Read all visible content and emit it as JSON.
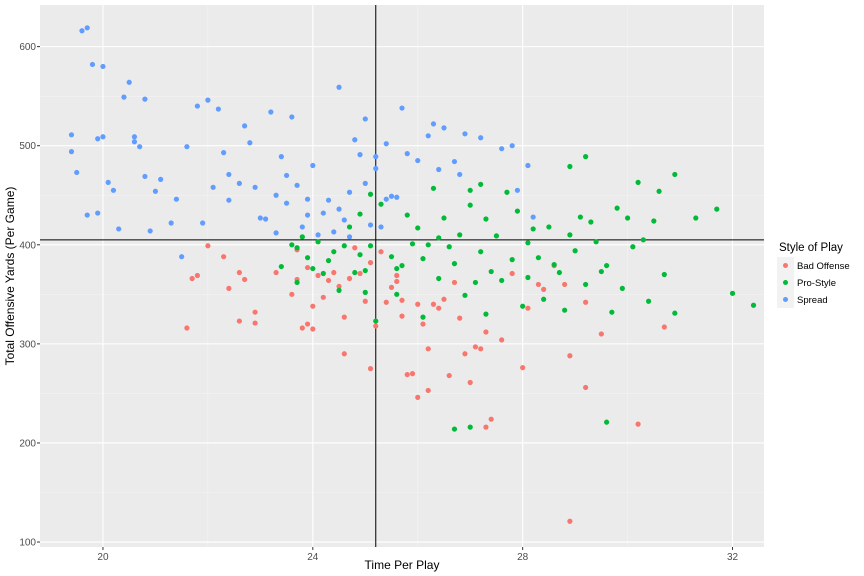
{
  "chart_data": {
    "type": "scatter",
    "xlabel": "Time Per Play",
    "ylabel": "Total Offensive Yards (Per Game)",
    "xlim": [
      18.8,
      32.6
    ],
    "ylim": [
      95,
      642
    ],
    "x_ticks": [
      20,
      24,
      28,
      32
    ],
    "y_ticks": [
      100,
      200,
      300,
      400,
      500,
      600
    ],
    "x_tick_labels": [
      "20",
      "24",
      "28",
      "32"
    ],
    "y_tick_labels": [
      "100",
      "200",
      "300",
      "400",
      "500",
      "600"
    ],
    "grid": true,
    "reference_lines": {
      "vertical_x": 25.2,
      "horizontal_y": 405
    },
    "legend": {
      "title": "Style of Play",
      "position": "right"
    },
    "series": [
      {
        "name": "Bad Offense",
        "color": "#F8766D",
        "points": [
          [
            21.6,
            316
          ],
          [
            21.7,
            366
          ],
          [
            21.8,
            369
          ],
          [
            22.0,
            399
          ],
          [
            22.3,
            388
          ],
          [
            22.4,
            356
          ],
          [
            22.6,
            372
          ],
          [
            22.6,
            323
          ],
          [
            22.7,
            365
          ],
          [
            22.9,
            332
          ],
          [
            22.9,
            321
          ],
          [
            23.3,
            372
          ],
          [
            23.6,
            350
          ],
          [
            23.7,
            365
          ],
          [
            23.7,
            395
          ],
          [
            23.8,
            316
          ],
          [
            23.9,
            320
          ],
          [
            23.9,
            377
          ],
          [
            24.0,
            338
          ],
          [
            24.0,
            315
          ],
          [
            24.1,
            369
          ],
          [
            24.2,
            347
          ],
          [
            24.3,
            364
          ],
          [
            24.4,
            372
          ],
          [
            24.5,
            358
          ],
          [
            24.6,
            327
          ],
          [
            24.6,
            290
          ],
          [
            24.7,
            366
          ],
          [
            24.8,
            397
          ],
          [
            24.9,
            371
          ],
          [
            25.0,
            343
          ],
          [
            25.1,
            382
          ],
          [
            25.1,
            275
          ],
          [
            25.2,
            318
          ],
          [
            25.3,
            393
          ],
          [
            25.4,
            342
          ],
          [
            25.5,
            357
          ],
          [
            25.6,
            363
          ],
          [
            25.6,
            369
          ],
          [
            25.7,
            344
          ],
          [
            25.7,
            328
          ],
          [
            25.8,
            269
          ],
          [
            25.9,
            270
          ],
          [
            26.0,
            246
          ],
          [
            26.0,
            340
          ],
          [
            26.1,
            320
          ],
          [
            26.2,
            295
          ],
          [
            26.3,
            340
          ],
          [
            26.4,
            336
          ],
          [
            26.5,
            345
          ],
          [
            26.6,
            268
          ],
          [
            26.7,
            362
          ],
          [
            26.8,
            326
          ],
          [
            26.9,
            290
          ],
          [
            27.1,
            297
          ],
          [
            27.2,
            295
          ],
          [
            27.3,
            216
          ],
          [
            27.3,
            312
          ],
          [
            27.4,
            224
          ],
          [
            27.6,
            304
          ],
          [
            27.8,
            371
          ],
          [
            28.0,
            276
          ],
          [
            28.1,
            336
          ],
          [
            28.3,
            360
          ],
          [
            28.6,
            379
          ],
          [
            28.8,
            360
          ],
          [
            28.9,
            288
          ],
          [
            28.9,
            121
          ],
          [
            29.2,
            342
          ],
          [
            29.2,
            256
          ],
          [
            29.5,
            310
          ],
          [
            30.2,
            219
          ],
          [
            30.7,
            317
          ],
          [
            26.2,
            253
          ],
          [
            27.0,
            261
          ],
          [
            28.4,
            355
          ]
        ]
      },
      {
        "name": "Pro-Style",
        "color": "#00BA38",
        "points": [
          [
            23.4,
            378
          ],
          [
            23.6,
            400
          ],
          [
            23.7,
            397
          ],
          [
            23.7,
            362
          ],
          [
            23.8,
            408
          ],
          [
            23.9,
            387
          ],
          [
            24.0,
            376
          ],
          [
            24.1,
            403
          ],
          [
            24.2,
            371
          ],
          [
            24.3,
            384
          ],
          [
            24.4,
            393
          ],
          [
            24.5,
            354
          ],
          [
            24.6,
            399
          ],
          [
            24.7,
            418
          ],
          [
            24.8,
            372
          ],
          [
            24.9,
            390
          ],
          [
            24.9,
            431
          ],
          [
            25.0,
            352
          ],
          [
            25.0,
            374
          ],
          [
            25.1,
            399
          ],
          [
            25.1,
            451
          ],
          [
            25.2,
            323
          ],
          [
            25.3,
            441
          ],
          [
            25.5,
            388
          ],
          [
            25.6,
            376
          ],
          [
            25.6,
            350
          ],
          [
            25.7,
            379
          ],
          [
            25.8,
            430
          ],
          [
            25.9,
            401
          ],
          [
            26.0,
            417
          ],
          [
            26.1,
            386
          ],
          [
            26.1,
            327
          ],
          [
            26.2,
            400
          ],
          [
            26.3,
            457
          ],
          [
            26.4,
            366
          ],
          [
            26.5,
            427
          ],
          [
            26.6,
            398
          ],
          [
            26.7,
            381
          ],
          [
            26.8,
            410
          ],
          [
            26.9,
            349
          ],
          [
            27.0,
            455
          ],
          [
            27.0,
            440
          ],
          [
            27.1,
            362
          ],
          [
            27.2,
            393
          ],
          [
            27.3,
            330
          ],
          [
            27.3,
            426
          ],
          [
            27.4,
            373
          ],
          [
            27.5,
            409
          ],
          [
            27.6,
            364
          ],
          [
            27.7,
            453
          ],
          [
            27.8,
            385
          ],
          [
            27.9,
            434
          ],
          [
            28.0,
            338
          ],
          [
            28.1,
            402
          ],
          [
            28.2,
            416
          ],
          [
            28.3,
            387
          ],
          [
            28.4,
            345
          ],
          [
            28.5,
            418
          ],
          [
            28.6,
            380
          ],
          [
            28.7,
            372
          ],
          [
            28.8,
            334
          ],
          [
            28.9,
            410
          ],
          [
            29.0,
            394
          ],
          [
            29.1,
            428
          ],
          [
            29.2,
            360
          ],
          [
            29.3,
            423
          ],
          [
            29.4,
            403
          ],
          [
            29.5,
            373
          ],
          [
            29.6,
            379
          ],
          [
            29.7,
            332
          ],
          [
            29.8,
            437
          ],
          [
            29.9,
            356
          ],
          [
            30.0,
            427
          ],
          [
            30.1,
            398
          ],
          [
            30.2,
            463
          ],
          [
            30.3,
            405
          ],
          [
            30.4,
            343
          ],
          [
            30.5,
            424
          ],
          [
            30.6,
            454
          ],
          [
            30.7,
            370
          ],
          [
            30.9,
            471
          ],
          [
            30.9,
            331
          ],
          [
            31.3,
            427
          ],
          [
            31.7,
            436
          ],
          [
            32.0,
            351
          ],
          [
            32.4,
            339
          ],
          [
            26.7,
            214
          ],
          [
            27.0,
            216
          ],
          [
            29.6,
            221
          ],
          [
            28.9,
            479
          ],
          [
            29.2,
            489
          ],
          [
            27.2,
            461
          ],
          [
            28.1,
            367
          ],
          [
            26.4,
            407
          ]
        ]
      },
      {
        "name": "Spread",
        "color": "#619CFF",
        "points": [
          [
            19.4,
            511
          ],
          [
            19.4,
            494
          ],
          [
            19.5,
            473
          ],
          [
            19.6,
            616
          ],
          [
            19.7,
            619
          ],
          [
            19.7,
            430
          ],
          [
            19.8,
            582
          ],
          [
            19.9,
            432
          ],
          [
            19.9,
            507
          ],
          [
            20.0,
            580
          ],
          [
            20.0,
            509
          ],
          [
            20.1,
            463
          ],
          [
            20.2,
            455
          ],
          [
            20.3,
            416
          ],
          [
            20.4,
            549
          ],
          [
            20.5,
            564
          ],
          [
            20.6,
            504
          ],
          [
            20.6,
            509
          ],
          [
            20.7,
            499
          ],
          [
            20.8,
            547
          ],
          [
            20.8,
            469
          ],
          [
            20.9,
            414
          ],
          [
            21.0,
            454
          ],
          [
            21.1,
            466
          ],
          [
            21.3,
            422
          ],
          [
            21.4,
            446
          ],
          [
            21.5,
            388
          ],
          [
            21.6,
            499
          ],
          [
            21.8,
            540
          ],
          [
            21.9,
            422
          ],
          [
            22.0,
            546
          ],
          [
            22.1,
            458
          ],
          [
            22.2,
            537
          ],
          [
            22.3,
            493
          ],
          [
            22.4,
            471
          ],
          [
            22.4,
            445
          ],
          [
            22.6,
            462
          ],
          [
            22.7,
            520
          ],
          [
            22.8,
            503
          ],
          [
            22.9,
            458
          ],
          [
            23.0,
            427
          ],
          [
            23.1,
            426
          ],
          [
            23.2,
            534
          ],
          [
            23.3,
            412
          ],
          [
            23.3,
            450
          ],
          [
            23.4,
            489
          ],
          [
            23.5,
            470
          ],
          [
            23.5,
            442
          ],
          [
            23.6,
            529
          ],
          [
            23.7,
            460
          ],
          [
            23.8,
            418
          ],
          [
            23.9,
            446
          ],
          [
            23.9,
            430
          ],
          [
            24.0,
            480
          ],
          [
            24.1,
            410
          ],
          [
            24.2,
            432
          ],
          [
            24.3,
            445
          ],
          [
            24.4,
            413
          ],
          [
            24.5,
            436
          ],
          [
            24.5,
            559
          ],
          [
            24.6,
            425
          ],
          [
            24.7,
            453
          ],
          [
            24.7,
            408
          ],
          [
            24.8,
            506
          ],
          [
            24.9,
            491
          ],
          [
            25.0,
            462
          ],
          [
            25.0,
            527
          ],
          [
            25.1,
            420
          ],
          [
            25.2,
            477
          ],
          [
            25.3,
            418
          ],
          [
            25.4,
            446
          ],
          [
            25.4,
            502
          ],
          [
            25.5,
            449
          ],
          [
            25.6,
            448
          ],
          [
            25.7,
            538
          ],
          [
            25.8,
            492
          ],
          [
            26.0,
            485
          ],
          [
            26.2,
            510
          ],
          [
            26.3,
            522
          ],
          [
            26.5,
            518
          ],
          [
            26.7,
            484
          ],
          [
            26.8,
            471
          ],
          [
            26.9,
            512
          ],
          [
            27.2,
            508
          ],
          [
            27.6,
            497
          ],
          [
            27.8,
            500
          ],
          [
            27.9,
            455
          ],
          [
            28.1,
            480
          ],
          [
            28.2,
            428
          ],
          [
            26.4,
            476
          ],
          [
            25.2,
            489
          ]
        ]
      }
    ]
  }
}
